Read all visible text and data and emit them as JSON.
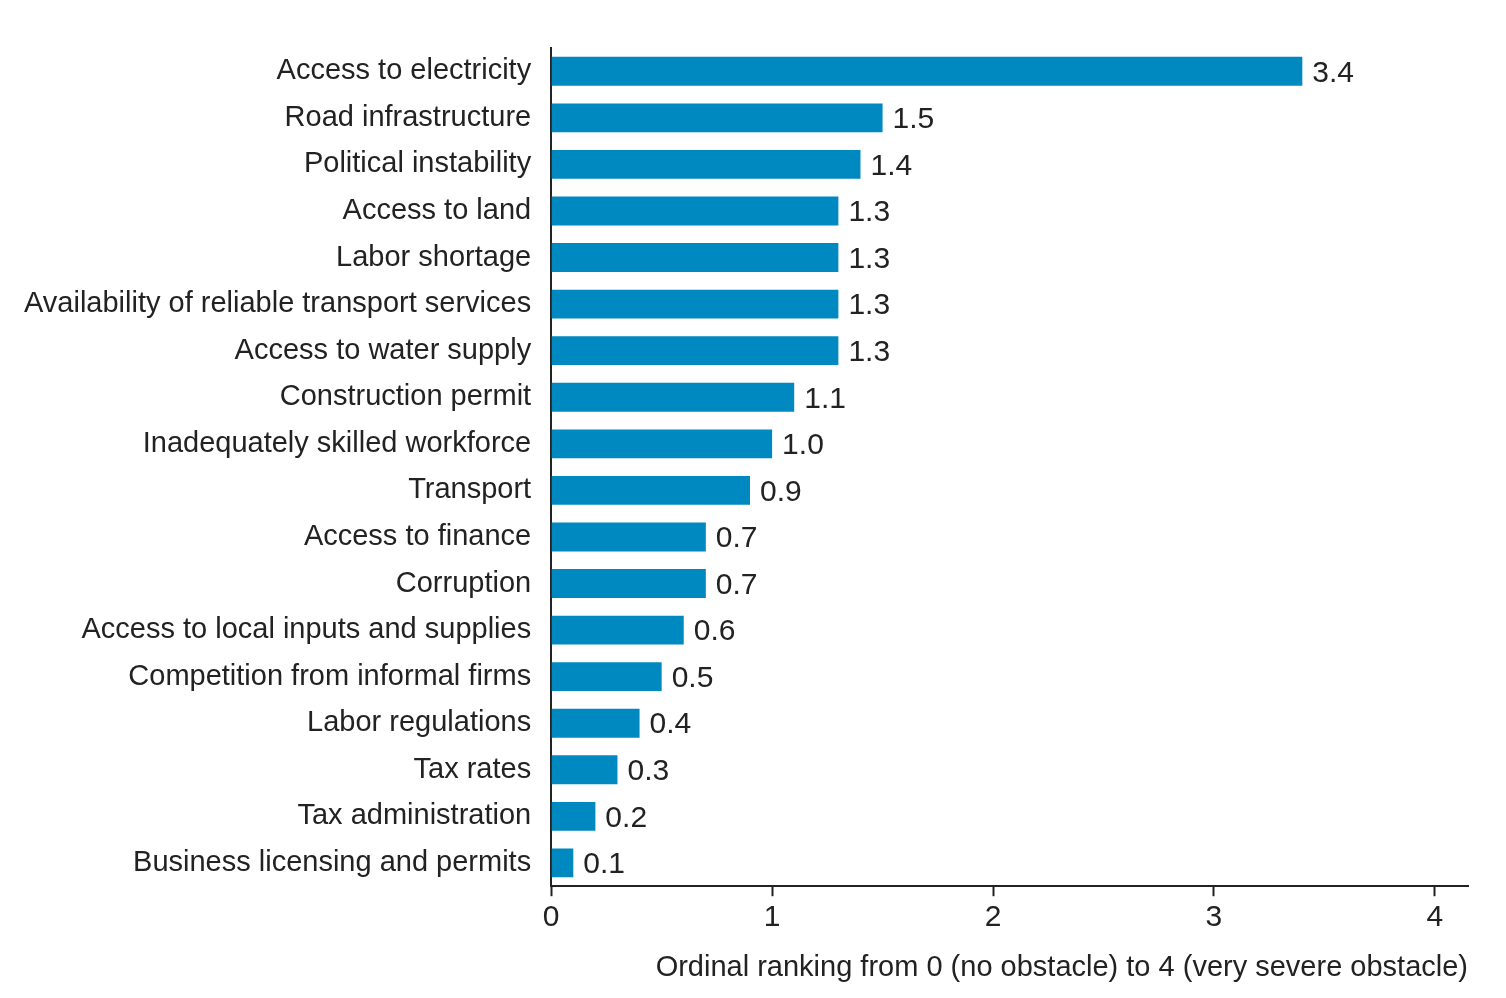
{
  "chart_data": {
    "type": "bar",
    "orientation": "horizontal",
    "xlabel": "Ordinal ranking from 0 (no obstacle) to 4 (very severe obstacle)",
    "categories": [
      "Access to electricity",
      "Road infrastructure",
      "Political instability",
      "Access to land",
      "Labor shortage",
      "Availability of reliable transport services",
      "Access to water supply",
      "Construction permit",
      "Inadequately skilled workforce",
      "Transport",
      "Access to finance",
      "Corruption",
      "Access to local inputs and supplies",
      "Competition from informal firms",
      "Labor regulations",
      "Tax rates",
      "Tax administration",
      "Business licensing and permits"
    ],
    "values": [
      3.4,
      1.5,
      1.4,
      1.3,
      1.3,
      1.3,
      1.3,
      1.1,
      1.0,
      0.9,
      0.7,
      0.7,
      0.6,
      0.5,
      0.4,
      0.3,
      0.2,
      0.1
    ],
    "value_labels": [
      "3.4",
      "1.5",
      "1.4",
      "1.3",
      "1.3",
      "1.3",
      "1.3",
      "1.1",
      "1.0",
      "0.9",
      "0.7",
      "0.7",
      "0.6",
      "0.5",
      "0.4",
      "0.3",
      "0.2",
      "0.1"
    ],
    "color": "#0088c0",
    "xlim": [
      0,
      4.15
    ],
    "xticks": [
      0,
      1,
      2,
      3,
      4
    ],
    "grid": false,
    "legend": false
  }
}
